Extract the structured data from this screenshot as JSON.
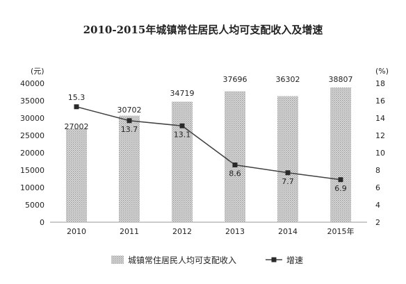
{
  "title": "2010-2015年城镇常住居民人均可支配收入及增速",
  "chart_data": {
    "type": "bar",
    "title": "2010-2015年城镇常住居民人均可支配收入及增速",
    "categories": [
      "2010",
      "2011",
      "2012",
      "2013",
      "2014",
      "2015年"
    ],
    "left_axis": {
      "unit": "(元)",
      "ylim": [
        0,
        40000
      ],
      "ticks": [
        "0",
        "5000",
        "10000",
        "15000",
        "20000",
        "25000",
        "30000",
        "35000",
        "40000"
      ]
    },
    "right_axis": {
      "unit": "(%)",
      "ylim": [
        2,
        18
      ],
      "ticks": [
        "2",
        "4",
        "6",
        "8",
        "10",
        "12",
        "14",
        "16",
        "18"
      ]
    },
    "series": [
      {
        "name": "城镇常住居民人均可支配收入",
        "type": "bar",
        "axis": "left",
        "values": [
          27002,
          30702,
          34719,
          37696,
          36302,
          38807
        ],
        "labels": [
          "27002",
          "30702",
          "34719",
          "37696",
          "36302",
          "38807"
        ],
        "color": "#c8c8c8"
      },
      {
        "name": "增速",
        "type": "line",
        "axis": "right",
        "values": [
          15.3,
          13.7,
          13.1,
          8.6,
          7.7,
          6.9
        ],
        "labels": [
          "15.3",
          "13.7",
          "13.1",
          "8.6",
          "7.7",
          "6.9"
        ],
        "color": "#404040"
      }
    ],
    "grid": false,
    "legend_position": "bottom"
  }
}
